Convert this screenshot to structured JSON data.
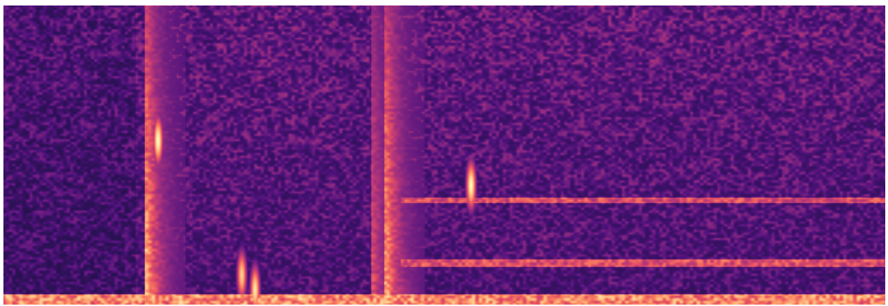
{
  "chart_data": {
    "type": "heatmap",
    "title": "",
    "xlabel": "",
    "ylabel": "",
    "colormap": "magma",
    "colormap_stops": [
      "#000004",
      "#1c1044",
      "#4f127b",
      "#812581",
      "#b5367a",
      "#e55064",
      "#fb8761",
      "#fec287",
      "#fcfdbf"
    ],
    "grid": false,
    "legend": "none",
    "broadband_onsets": [
      {
        "time_fraction": 0.163,
        "peak_intensity": 0.95
      },
      {
        "time_fraction": 0.42,
        "peak_intensity": 0.55
      },
      {
        "time_fraction": 0.435,
        "peak_intensity": 0.9
      }
    ],
    "hot_spots": [
      {
        "time_fraction": 0.175,
        "freq_fraction": 0.55,
        "intensity": 1.0
      },
      {
        "time_fraction": 0.53,
        "freq_fraction": 0.4,
        "intensity": 1.0
      },
      {
        "time_fraction": 0.27,
        "freq_fraction": 0.1,
        "intensity": 0.9
      },
      {
        "time_fraction": 0.285,
        "freq_fraction": 0.05,
        "intensity": 0.95
      }
    ]
  }
}
